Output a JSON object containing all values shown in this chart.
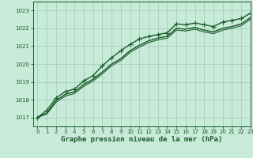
{
  "background_color": "#c8ead8",
  "grid_color": "#a8d4c0",
  "line_color": "#1a5c2a",
  "xlabel": "Graphe pression niveau de la mer (hPa)",
  "xlim": [
    -0.5,
    23
  ],
  "ylim": [
    1016.5,
    1023.5
  ],
  "yticks": [
    1017,
    1018,
    1019,
    1020,
    1021,
    1022,
    1023
  ],
  "xticks": [
    0,
    1,
    2,
    3,
    4,
    5,
    6,
    7,
    8,
    9,
    10,
    11,
    12,
    13,
    14,
    15,
    16,
    17,
    18,
    19,
    20,
    21,
    22,
    23
  ],
  "series": [
    {
      "values": [
        1017.0,
        1017.4,
        1018.1,
        1018.45,
        1018.6,
        1019.05,
        1019.35,
        1019.9,
        1020.35,
        1020.75,
        1021.1,
        1021.4,
        1021.55,
        1021.65,
        1021.75,
        1022.25,
        1022.2,
        1022.3,
        1022.2,
        1022.1,
        1022.35,
        1022.45,
        1022.55,
        1022.85
      ],
      "marker": "+",
      "markersize": 4,
      "linewidth": 1.0
    },
    {
      "values": [
        1017.0,
        1017.25,
        1017.95,
        1018.3,
        1018.45,
        1018.85,
        1019.15,
        1019.55,
        1020.0,
        1020.3,
        1020.75,
        1021.05,
        1021.3,
        1021.45,
        1021.55,
        1022.0,
        1021.95,
        1022.05,
        1021.9,
        1021.8,
        1022.0,
        1022.1,
        1022.25,
        1022.6
      ],
      "marker": null,
      "markersize": 0,
      "linewidth": 0.8
    },
    {
      "values": [
        1017.0,
        1017.25,
        1017.95,
        1018.3,
        1018.45,
        1018.85,
        1019.15,
        1019.55,
        1020.0,
        1020.3,
        1020.75,
        1021.05,
        1021.3,
        1021.45,
        1021.55,
        1022.0,
        1021.95,
        1022.05,
        1021.9,
        1021.8,
        1022.0,
        1022.1,
        1022.25,
        1022.6
      ],
      "marker": null,
      "markersize": 0,
      "linewidth": 0.8
    },
    {
      "values": [
        1017.0,
        1017.2,
        1017.85,
        1018.2,
        1018.35,
        1018.75,
        1019.05,
        1019.45,
        1019.9,
        1020.2,
        1020.65,
        1020.95,
        1021.2,
        1021.35,
        1021.45,
        1021.9,
        1021.85,
        1021.95,
        1021.8,
        1021.7,
        1021.9,
        1022.0,
        1022.15,
        1022.5
      ],
      "marker": null,
      "markersize": 0,
      "linewidth": 0.8
    }
  ]
}
